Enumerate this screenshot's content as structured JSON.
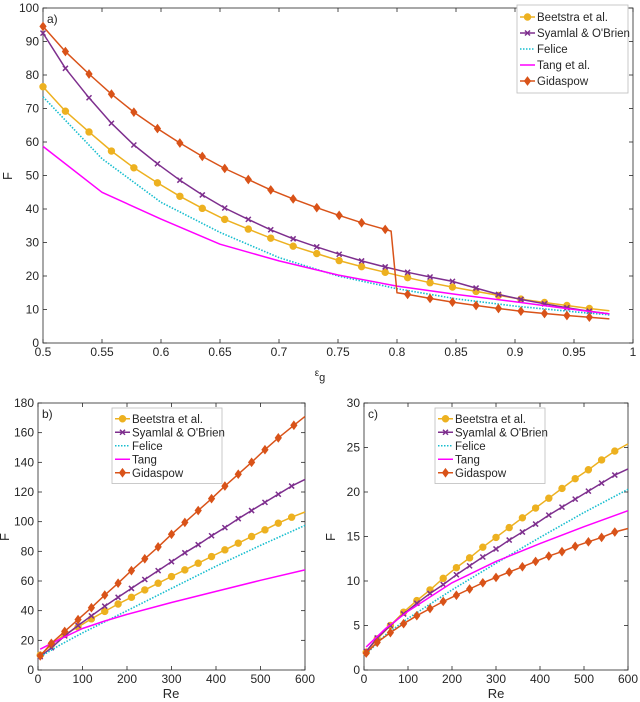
{
  "chart_data": [
    {
      "type": "line",
      "panel_label": "a)",
      "xlabel": "ε",
      "xlabel_sub": "g",
      "ylabel": "F",
      "xlim": [
        0.5,
        1
      ],
      "ylim": [
        0,
        100
      ],
      "xticks": [
        0.5,
        0.55,
        0.6,
        0.65,
        0.7,
        0.75,
        0.8,
        0.85,
        0.9,
        0.95,
        1
      ],
      "xtick_labels": [
        "0.5",
        "0.55",
        "0.6",
        "0.65",
        "0.7",
        "0.75",
        "0.8",
        "0.85",
        "0.9",
        "0.95",
        "1"
      ],
      "yticks": [
        0,
        10,
        20,
        30,
        40,
        50,
        60,
        70,
        80,
        90,
        100
      ],
      "ytick_labels": [
        "0",
        "10",
        "20",
        "30",
        "40",
        "50",
        "60",
        "70",
        "80",
        "90",
        "100"
      ],
      "legend_position": "top-right",
      "series": [
        {
          "name": "Beetstra et al.",
          "color": "#EDB120",
          "marker": "circle",
          "dash": false,
          "x": [
            0.5,
            0.519,
            0.539,
            0.558,
            0.577,
            0.597,
            0.616,
            0.635,
            0.654,
            0.674,
            0.693,
            0.712,
            0.732,
            0.751,
            0.77,
            0.79,
            0.809,
            0.828,
            0.847,
            0.867,
            0.886,
            0.905,
            0.925,
            0.944,
            0.963,
            0.98
          ],
          "y": [
            76.5,
            69.2,
            63,
            57.3,
            52.3,
            47.8,
            43.8,
            40.2,
            36.9,
            34,
            31.3,
            28.9,
            26.7,
            24.6,
            22.8,
            21.1,
            19.5,
            18,
            16.7,
            15.4,
            14.2,
            13.1,
            12.1,
            11.2,
            10.3,
            9.6
          ],
          "unmarked": [
            25
          ]
        },
        {
          "name": "Syamlal & O'Brien",
          "color": "#7E2F8E",
          "marker": "x",
          "dash": false,
          "x": [
            0.5,
            0.519,
            0.539,
            0.558,
            0.577,
            0.597,
            0.616,
            0.635,
            0.654,
            0.674,
            0.693,
            0.712,
            0.732,
            0.751,
            0.77,
            0.79,
            0.809,
            0.828,
            0.847,
            0.867,
            0.886,
            0.905,
            0.925,
            0.944,
            0.963,
            0.98
          ],
          "y": [
            92.5,
            82,
            73.2,
            65.6,
            59.1,
            53.5,
            48.6,
            44.2,
            40.3,
            36.9,
            33.8,
            31.1,
            28.7,
            26.5,
            24.5,
            22.7,
            21.1,
            19.7,
            18.4,
            16.4,
            14.5,
            13,
            11.7,
            10.5,
            9.5,
            8.7
          ],
          "unmarked": [
            25
          ]
        },
        {
          "name": "Felice",
          "color": "#17BECF",
          "marker": "none",
          "dash": true,
          "x": [
            0.5,
            0.55,
            0.6,
            0.65,
            0.7,
            0.75,
            0.8,
            0.85,
            0.9,
            0.95,
            0.98
          ],
          "y": [
            73.5,
            55,
            42,
            33,
            25.5,
            20,
            16.2,
            13.2,
            11,
            9.3,
            8.4
          ],
          "unmarked": []
        },
        {
          "name": "Tang et al.",
          "color": "#FF00FF",
          "marker": "none",
          "dash": false,
          "x": [
            0.5,
            0.55,
            0.6,
            0.65,
            0.7,
            0.75,
            0.8,
            0.85,
            0.9,
            0.95,
            0.98
          ],
          "y": [
            58.7,
            45,
            37,
            29.5,
            24.5,
            20.3,
            17,
            14.5,
            12.3,
            10,
            8.7
          ],
          "unmarked": []
        },
        {
          "name": "Gidaspow",
          "color": "#D95319",
          "marker": "diamond",
          "dash": false,
          "x": [
            0.5,
            0.519,
            0.539,
            0.558,
            0.577,
            0.597,
            0.616,
            0.635,
            0.654,
            0.674,
            0.693,
            0.712,
            0.732,
            0.751,
            0.77,
            0.79,
            0.795,
            0.8,
            0.809,
            0.828,
            0.847,
            0.867,
            0.886,
            0.905,
            0.925,
            0.944,
            0.963,
            0.98
          ],
          "y": [
            94.5,
            87,
            80.3,
            74.3,
            68.9,
            64,
            59.7,
            55.7,
            52.1,
            48.8,
            45.7,
            43,
            40.4,
            38.1,
            35.9,
            33.9,
            33.4,
            15,
            14.5,
            13.3,
            12.2,
            11.2,
            10.3,
            9.5,
            8.8,
            8.2,
            7.7,
            7.2
          ],
          "unmarked": [
            16,
            17,
            27
          ]
        }
      ]
    },
    {
      "type": "line",
      "panel_label": "b)",
      "xlabel": "Re",
      "xlabel_sub": "",
      "ylabel": "F",
      "xlim": [
        0,
        600
      ],
      "ylim": [
        0,
        180
      ],
      "xticks": [
        0,
        100,
        200,
        300,
        400,
        500,
        600
      ],
      "xtick_labels": [
        "0",
        "100",
        "200",
        "300",
        "400",
        "500",
        "600"
      ],
      "yticks": [
        0,
        20,
        40,
        60,
        80,
        100,
        120,
        140,
        160,
        180
      ],
      "ytick_labels": [
        "0",
        "20",
        "40",
        "60",
        "80",
        "100",
        "120",
        "140",
        "160",
        "180"
      ],
      "legend_position": "top-center",
      "series": [
        {
          "name": "Beetstra et al.",
          "color": "#EDB120",
          "marker": "circle",
          "dash": false,
          "x": [
            5,
            30,
            60,
            90,
            120,
            150,
            180,
            210,
            240,
            270,
            300,
            330,
            360,
            390,
            420,
            450,
            480,
            510,
            540,
            570,
            600
          ],
          "y": [
            10,
            17,
            24,
            29,
            34.5,
            39.5,
            44.5,
            49,
            54,
            58.5,
            63,
            67.5,
            72,
            76.5,
            81,
            85.5,
            90,
            94.5,
            99,
            103,
            106.5
          ],
          "unmarked": [
            20
          ]
        },
        {
          "name": "Syamlal & O'Brien",
          "color": "#7E2F8E",
          "marker": "x",
          "dash": false,
          "x": [
            5,
            30,
            60,
            90,
            120,
            150,
            180,
            210,
            240,
            270,
            300,
            330,
            360,
            390,
            420,
            450,
            480,
            510,
            540,
            570,
            600
          ],
          "y": [
            9,
            15,
            23,
            30,
            36.5,
            43,
            49,
            55,
            61,
            67,
            73,
            79,
            84.5,
            90.5,
            96,
            102,
            107.5,
            113,
            118.5,
            124,
            128.5
          ],
          "unmarked": [
            20
          ]
        },
        {
          "name": "Felice",
          "color": "#17BECF",
          "marker": "none",
          "dash": true,
          "x": [
            0,
            50,
            100,
            200,
            300,
            400,
            500,
            600
          ],
          "y": [
            8,
            17,
            25,
            40,
            55,
            70,
            84,
            97.5
          ],
          "unmarked": []
        },
        {
          "name": "Tang",
          "color": "#FF00FF",
          "marker": "none",
          "dash": false,
          "x": [
            5,
            50,
            100,
            150,
            200,
            300,
            400,
            500,
            600
          ],
          "y": [
            14,
            21,
            28,
            33,
            37.5,
            45.5,
            53,
            60.5,
            67.5
          ],
          "unmarked": []
        },
        {
          "name": "Gidaspow",
          "color": "#D95319",
          "marker": "diamond",
          "dash": false,
          "x": [
            5,
            30,
            60,
            90,
            120,
            150,
            180,
            210,
            240,
            270,
            300,
            330,
            360,
            390,
            420,
            450,
            480,
            510,
            540,
            575,
            600
          ],
          "y": [
            9.5,
            18,
            26,
            34,
            42,
            50.5,
            58.5,
            67,
            75,
            83,
            91.5,
            99.5,
            107.5,
            115.5,
            124,
            132,
            140,
            148.5,
            156.5,
            165,
            171
          ],
          "unmarked": [
            20
          ]
        }
      ]
    },
    {
      "type": "line",
      "panel_label": "c)",
      "xlabel": "Re",
      "xlabel_sub": "",
      "ylabel": "F",
      "xlim": [
        0,
        600
      ],
      "ylim": [
        0,
        30
      ],
      "xticks": [
        0,
        100,
        200,
        300,
        400,
        500,
        600
      ],
      "xtick_labels": [
        "0",
        "100",
        "200",
        "300",
        "400",
        "500",
        "600"
      ],
      "yticks": [
        0,
        5,
        10,
        15,
        20,
        25,
        30
      ],
      "ytick_labels": [
        "0",
        "5",
        "10",
        "15",
        "20",
        "25",
        "30"
      ],
      "legend_position": "top-center",
      "series": [
        {
          "name": "Beetstra et al.",
          "color": "#EDB120",
          "marker": "circle",
          "dash": false,
          "x": [
            5,
            30,
            60,
            90,
            120,
            150,
            180,
            210,
            240,
            270,
            300,
            330,
            360,
            390,
            420,
            450,
            480,
            510,
            540,
            570,
            600
          ],
          "y": [
            2,
            3.5,
            5,
            6.5,
            7.8,
            9,
            10.3,
            11.5,
            12.6,
            13.8,
            14.9,
            16,
            17.1,
            18.2,
            19.3,
            20.4,
            21.5,
            22.5,
            23.6,
            24.6,
            25.4
          ],
          "unmarked": [
            20
          ]
        },
        {
          "name": "Syamlal & O'Brien",
          "color": "#7E2F8E",
          "marker": "x",
          "dash": false,
          "x": [
            5,
            30,
            60,
            90,
            120,
            150,
            180,
            210,
            240,
            270,
            300,
            330,
            360,
            390,
            420,
            450,
            480,
            510,
            540,
            570,
            600
          ],
          "y": [
            2.1,
            3.6,
            5,
            6.3,
            7.5,
            8.6,
            9.6,
            10.7,
            11.7,
            12.7,
            13.6,
            14.6,
            15.5,
            16.4,
            17.4,
            18.3,
            19.2,
            20.1,
            21,
            21.9,
            22.6
          ],
          "unmarked": [
            20
          ]
        },
        {
          "name": "Felice",
          "color": "#17BECF",
          "marker": "none",
          "dash": true,
          "x": [
            5,
            50,
            100,
            200,
            300,
            400,
            500,
            600
          ],
          "y": [
            1.8,
            4,
            5.8,
            9,
            12,
            14.9,
            17.7,
            20.3
          ],
          "unmarked": []
        },
        {
          "name": "Tang",
          "color": "#FF00FF",
          "marker": "none",
          "dash": false,
          "x": [
            5,
            50,
            100,
            200,
            300,
            400,
            500,
            600
          ],
          "y": [
            2.6,
            4.7,
            6.6,
            9.8,
            12.2,
            14.2,
            16.1,
            17.9
          ],
          "unmarked": []
        },
        {
          "name": "Gidaspow",
          "color": "#D95319",
          "marker": "diamond",
          "dash": false,
          "x": [
            5,
            30,
            60,
            90,
            120,
            150,
            180,
            210,
            240,
            270,
            300,
            330,
            360,
            390,
            420,
            450,
            480,
            510,
            540,
            570,
            600
          ],
          "y": [
            1.9,
            3.1,
            4.2,
            5.2,
            6.1,
            6.9,
            7.7,
            8.4,
            9.1,
            9.8,
            10.4,
            11,
            11.6,
            12.2,
            12.8,
            13.3,
            13.9,
            14.4,
            14.9,
            15.5,
            15.9
          ],
          "unmarked": [
            20
          ]
        }
      ]
    }
  ]
}
